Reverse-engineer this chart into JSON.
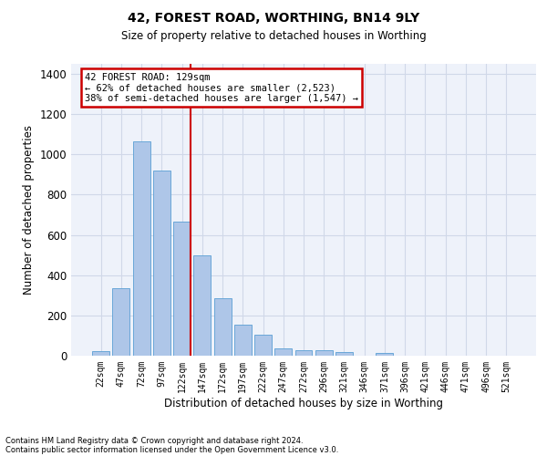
{
  "title": "42, FOREST ROAD, WORTHING, BN14 9LY",
  "subtitle": "Size of property relative to detached houses in Worthing",
  "xlabel": "Distribution of detached houses by size in Worthing",
  "ylabel": "Number of detached properties",
  "footnote1": "Contains HM Land Registry data © Crown copyright and database right 2024.",
  "footnote2": "Contains public sector information licensed under the Open Government Licence v3.0.",
  "bar_labels": [
    "22sqm",
    "47sqm",
    "72sqm",
    "97sqm",
    "122sqm",
    "147sqm",
    "172sqm",
    "197sqm",
    "222sqm",
    "247sqm",
    "272sqm",
    "296sqm",
    "321sqm",
    "346sqm",
    "371sqm",
    "396sqm",
    "421sqm",
    "446sqm",
    "471sqm",
    "496sqm",
    "521sqm"
  ],
  "bar_values": [
    22,
    335,
    1065,
    920,
    665,
    500,
    285,
    155,
    105,
    38,
    25,
    25,
    18,
    0,
    14,
    0,
    0,
    0,
    0,
    0,
    0
  ],
  "bar_color": "#aec6e8",
  "bar_edgecolor": "#5a9fd4",
  "ylim": [
    0,
    1450
  ],
  "yticks": [
    0,
    200,
    400,
    600,
    800,
    1000,
    1200,
    1400
  ],
  "property_line_bin": 4,
  "annotation_title": "42 FOREST ROAD: 129sqm",
  "annotation_line1": "← 62% of detached houses are smaller (2,523)",
  "annotation_line2": "38% of semi-detached houses are larger (1,547) →",
  "annotation_box_color": "#ffffff",
  "annotation_box_edgecolor": "#cc0000",
  "vline_color": "#cc0000",
  "grid_color": "#d0d8e8",
  "background_color": "#eef2fa"
}
